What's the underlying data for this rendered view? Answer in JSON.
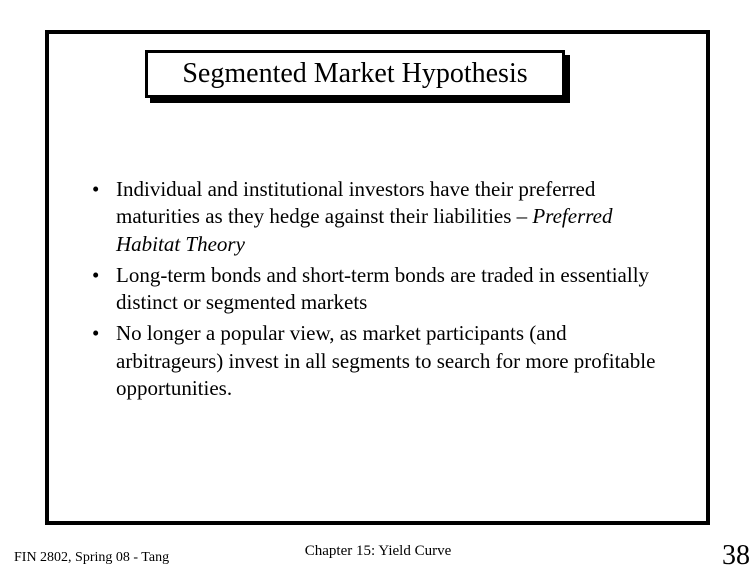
{
  "slide": {
    "title": "Segmented Market Hypothesis",
    "bullets": [
      {
        "text_before_italic": "Individual and institutional investors have their preferred maturities as they hedge against their liabilities – ",
        "italic": "Preferred Habitat Theory",
        "text_after_italic": ""
      },
      {
        "text_before_italic": "Long-term bonds and short-term bonds are traded in essentially distinct or segmented markets",
        "italic": "",
        "text_after_italic": ""
      },
      {
        "text_before_italic": "No longer a popular view, as market participants (and arbitrageurs) invest in all segments to search for more profitable opportunities.",
        "italic": "",
        "text_after_italic": ""
      }
    ],
    "footer_left": "FIN 2802, Spring 08 - Tang",
    "footer_center": "Chapter 15: Yield Curve",
    "page_number": "38"
  },
  "style": {
    "frame_border_color": "#000000",
    "frame_border_width": 4,
    "title_border_color": "#000000",
    "title_border_width": 3,
    "title_shadow_color": "#000000",
    "background_color": "#ffffff",
    "text_color": "#000000",
    "title_fontsize": 28,
    "body_fontsize": 21,
    "footer_fontsize_small": 14,
    "footer_fontsize_center": 15,
    "page_number_fontsize": 28
  }
}
